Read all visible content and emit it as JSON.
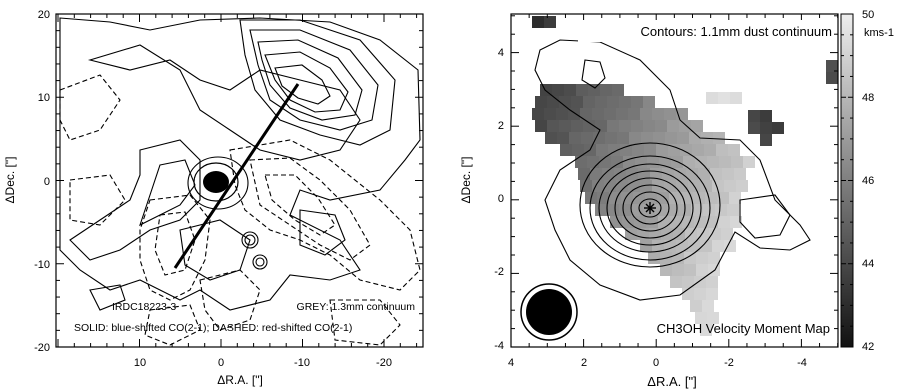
{
  "left_panel": {
    "xlabel": "ΔR.A. [\"]",
    "ylabel": "ΔDec. [\"]",
    "xticks": [
      "10",
      "0",
      "-10",
      "-20"
    ],
    "yticks": [
      "20",
      "10",
      "0",
      "-10",
      "-20"
    ],
    "source_label": "IRDC18223-3",
    "grey_label": "GREY: 1.3mm continuum",
    "contour_label": "SOLID: blue-shifted CO(2-1); DASHED: red-shifted CO(2-1)"
  },
  "right_panel": {
    "xlabel": "ΔR.A. [\"]",
    "ylabel": "ΔDec. [\"]",
    "xticks": [
      "4",
      "2",
      "0",
      "-2",
      "-4"
    ],
    "yticks": [
      "4",
      "2",
      "0",
      "-2",
      "-4"
    ],
    "contour_label": "Contours: 1.1mm dust continuum",
    "map_label": "CH3OH Velocity Moment Map",
    "colorbar_unit": "kms-1",
    "colorbar_ticks": [
      "50",
      "48",
      "46",
      "44",
      "42"
    ],
    "colorbar_range": [
      42,
      50
    ]
  }
}
